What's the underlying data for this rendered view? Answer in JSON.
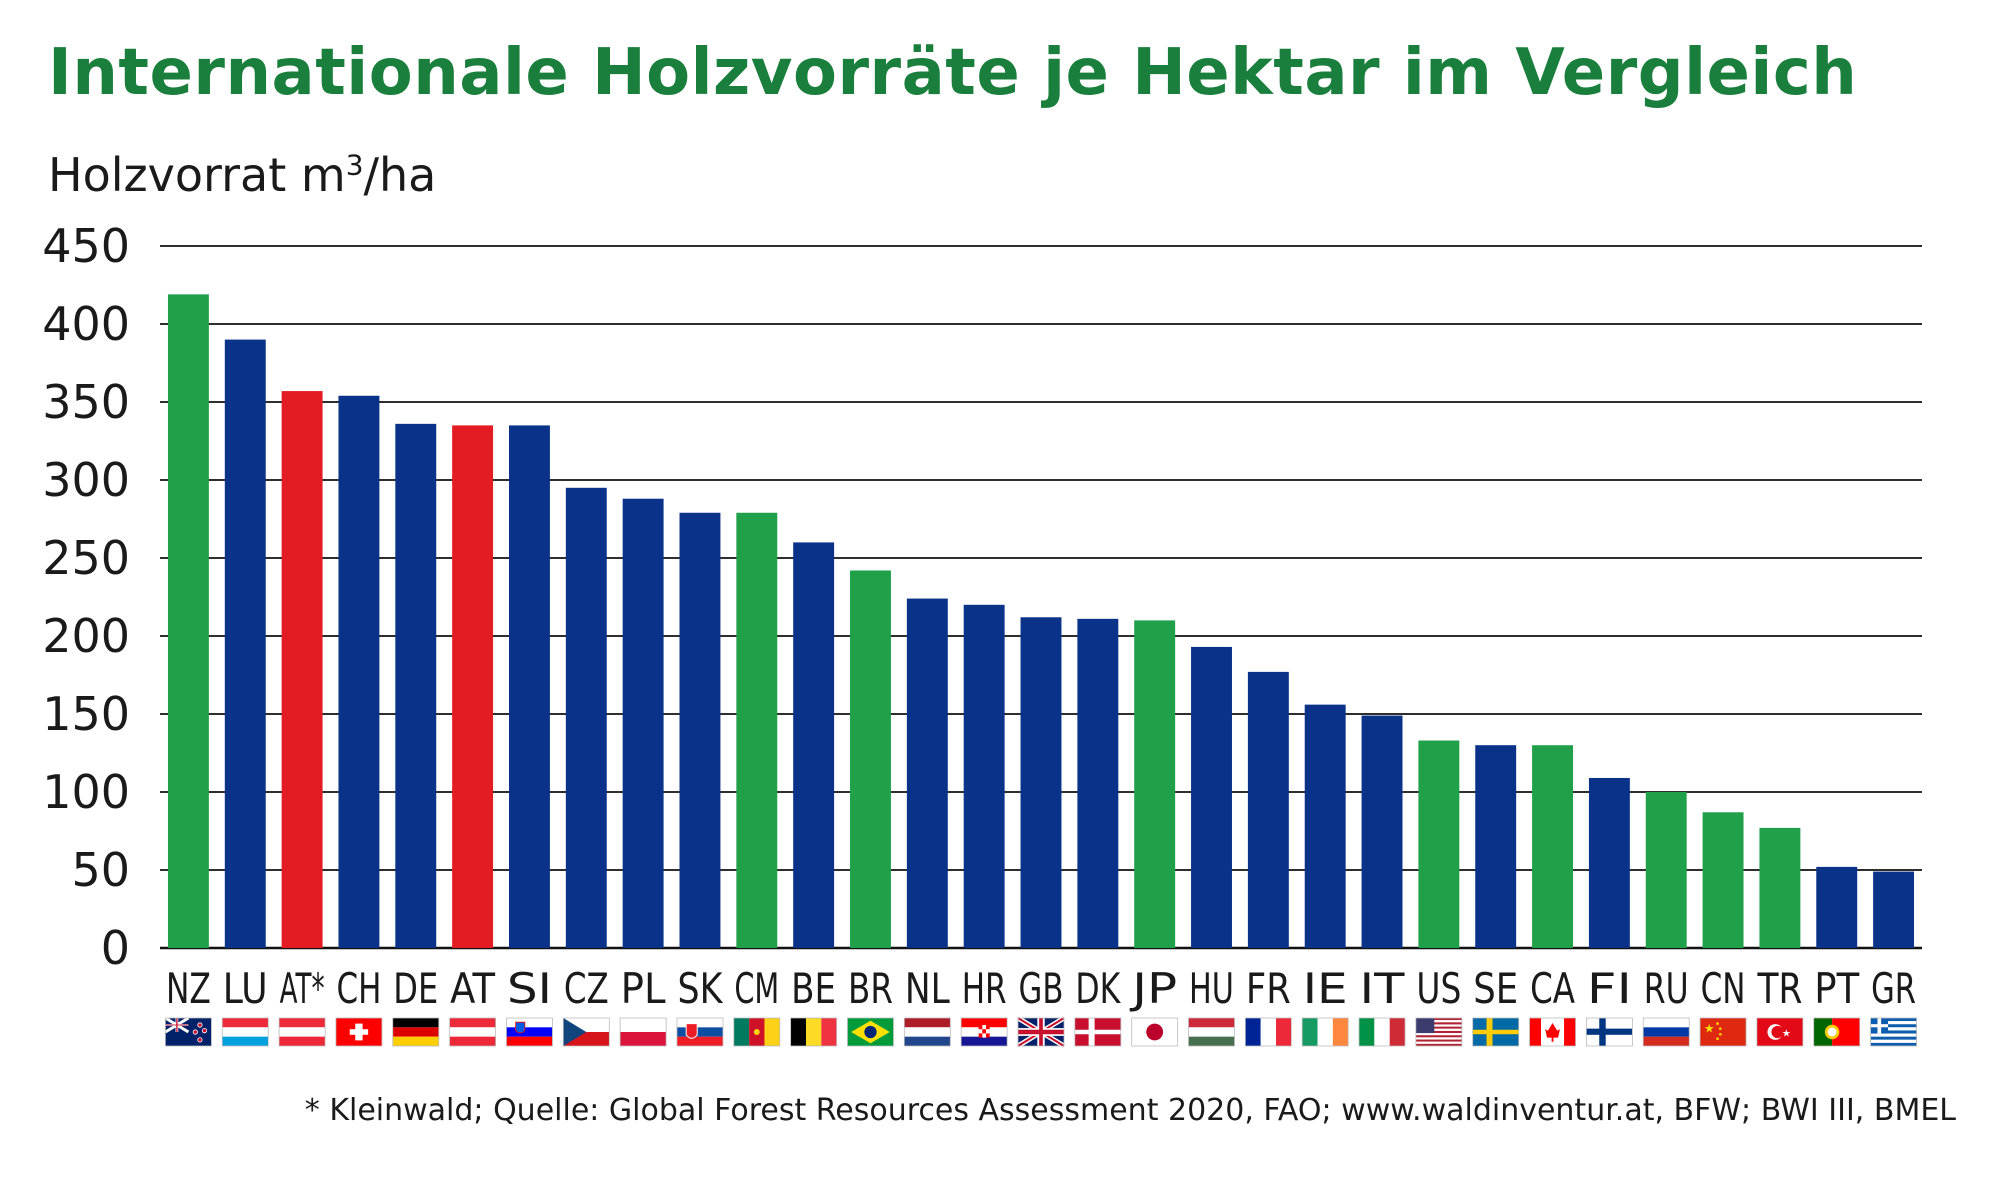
{
  "title": "Internationale Holzvorräte je Hektar im Vergleich",
  "footnote": "* Kleinwald; Quelle: Global Forest Resources Assessment 2020, FAO; www.waldinventur.at, BFW; BWI III, BMEL",
  "colors": {
    "green": "#21a04a",
    "blue": "#0a3288",
    "red": "#e31b23",
    "title": "#1a7f3c"
  },
  "chart_data": {
    "type": "bar",
    "ylabel_main": "Holzvorrat m",
    "ylabel_sup": "3",
    "ylabel_tail": "/ha",
    "ylim": [
      0,
      450
    ],
    "yticks": [
      0,
      50,
      100,
      150,
      200,
      250,
      300,
      350,
      400,
      450
    ],
    "grid": true,
    "categories": [
      "NZ",
      "LU",
      "AT*",
      "CH",
      "DE",
      "AT",
      "SI",
      "CZ",
      "PL",
      "SK",
      "CM",
      "BE",
      "BR",
      "NL",
      "HR",
      "GB",
      "DK",
      "JP",
      "HU",
      "FR",
      "IE",
      "IT",
      "US",
      "SE",
      "CA",
      "FI",
      "RU",
      "CN",
      "TR",
      "PT",
      "GR"
    ],
    "values": [
      419,
      390,
      357,
      354,
      336,
      335,
      335,
      295,
      288,
      279,
      279,
      260,
      242,
      224,
      220,
      212,
      211,
      210,
      193,
      177,
      156,
      149,
      133,
      130,
      130,
      109,
      100,
      87,
      77,
      52,
      49
    ],
    "bar_colors": [
      "green",
      "blue",
      "red",
      "blue",
      "blue",
      "red",
      "blue",
      "blue",
      "blue",
      "blue",
      "green",
      "blue",
      "green",
      "blue",
      "blue",
      "blue",
      "blue",
      "green",
      "blue",
      "blue",
      "blue",
      "blue",
      "green",
      "blue",
      "green",
      "blue",
      "green",
      "green",
      "green",
      "blue",
      "blue"
    ],
    "flags": [
      "flag-nz",
      "flag-lu",
      "flag-at",
      "flag-ch",
      "flag-de",
      "flag-at",
      "flag-si",
      "flag-cz",
      "flag-pl",
      "flag-sk",
      "flag-cm",
      "flag-be",
      "flag-br",
      "flag-nl",
      "flag-hr",
      "flag-gb",
      "flag-dk",
      "flag-jp",
      "flag-hu",
      "flag-fr",
      "flag-ie",
      "flag-it",
      "flag-us",
      "flag-se",
      "flag-ca",
      "flag-fi",
      "flag-ru",
      "flag-cn",
      "flag-tr",
      "flag-pt",
      "flag-gr"
    ]
  }
}
